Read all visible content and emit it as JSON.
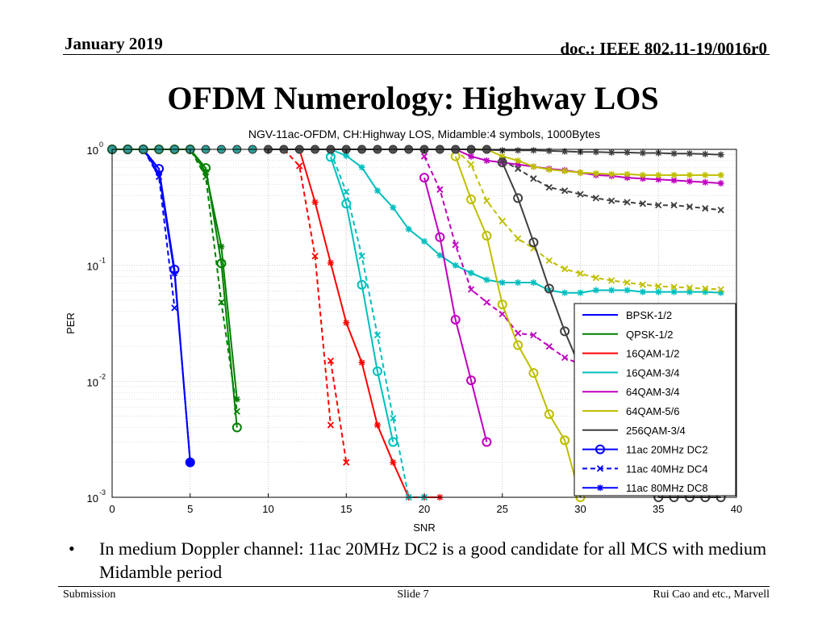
{
  "header": {
    "date": "January 2019",
    "doc": "doc.: IEEE 802.11-19/0016r0"
  },
  "slide": {
    "title": "OFDM Numerology: Highway LOS"
  },
  "bullet": {
    "marker": "•",
    "text": "In medium Doppler channel: 11ac 20MHz DC2 is a good candidate for all MCS with medium Midamble period"
  },
  "footer": {
    "left": "Submission",
    "center": "Slide 7",
    "right": "Rui Cao and etc., Marvell"
  },
  "chart_data": {
    "type": "line",
    "title": "NGV-11ac-OFDM, CH:Highway LOS, Midamble:4 symbols, 1000Bytes",
    "xlabel": "SNR",
    "ylabel": "PER",
    "xlim": [
      0,
      40
    ],
    "ylim": [
      0.001,
      1
    ],
    "yscale": "log",
    "xticks": [
      0,
      5,
      10,
      15,
      20,
      25,
      30,
      35,
      40
    ],
    "yticks": [
      {
        "value": 1,
        "base": "10",
        "exp": "0"
      },
      {
        "value": 0.1,
        "base": "10",
        "exp": "-1"
      },
      {
        "value": 0.01,
        "base": "10",
        "exp": "-2"
      },
      {
        "value": 0.001,
        "base": "10",
        "exp": "-3"
      }
    ],
    "grid": true,
    "legend_position": "bottom-right",
    "mcs": [
      {
        "name": "BPSK-1/2",
        "color": "#0000ff"
      },
      {
        "name": "QPSK-1/2",
        "color": "#008000"
      },
      {
        "name": "16QAM-1/2",
        "color": "#ff0000"
      },
      {
        "name": "16QAM-3/4",
        "color": "#00bfbf"
      },
      {
        "name": "64QAM-3/4",
        "color": "#bf00bf"
      },
      {
        "name": "64QAM-5/6",
        "color": "#bfbf00"
      },
      {
        "name": "256QAM-3/4",
        "color": "#404040"
      }
    ],
    "modes": [
      {
        "name": "11ac 20MHz DC2",
        "line": "solid",
        "marker": "circle"
      },
      {
        "name": "11ac 40MHz DC4",
        "line": "dashed",
        "marker": "x"
      },
      {
        "name": "11ac 80MHz DC8",
        "line": "solid",
        "marker": "star"
      }
    ],
    "series": [
      {
        "name": "BPSK-1/2 / 11ac 20MHz DC2",
        "mcs": 0,
        "mode": 0,
        "x": [
          0,
          1,
          2,
          3,
          4,
          5
        ],
        "y": [
          1,
          1,
          1,
          0.68,
          0.092,
          0.002
        ]
      },
      {
        "name": "BPSK-1/2 / 11ac 40MHz DC4",
        "mcs": 0,
        "mode": 1,
        "x": [
          0,
          1,
          2,
          3,
          4
        ],
        "y": [
          1,
          1,
          1,
          0.58,
          0.043
        ]
      },
      {
        "name": "BPSK-1/2 / 11ac 80MHz DC8",
        "mcs": 0,
        "mode": 2,
        "x": [
          0,
          1,
          2,
          3,
          4,
          5
        ],
        "y": [
          1,
          1,
          1,
          0.62,
          0.085,
          0.002
        ]
      },
      {
        "name": "QPSK-1/2 / 11ac 20MHz DC2",
        "mcs": 1,
        "mode": 0,
        "x": [
          0,
          1,
          2,
          3,
          4,
          5,
          6,
          7,
          8
        ],
        "y": [
          1,
          1,
          1,
          1,
          1,
          1,
          0.69,
          0.104,
          0.004
        ]
      },
      {
        "name": "QPSK-1/2 / 11ac 40MHz DC4",
        "mcs": 1,
        "mode": 1,
        "x": [
          0,
          1,
          2,
          3,
          4,
          5,
          6,
          7,
          8
        ],
        "y": [
          1,
          1,
          1,
          1,
          1,
          1,
          0.58,
          0.048,
          0.0055
        ]
      },
      {
        "name": "QPSK-1/2 / 11ac 80MHz DC8",
        "mcs": 1,
        "mode": 2,
        "x": [
          0,
          1,
          2,
          3,
          4,
          5,
          6,
          7,
          8
        ],
        "y": [
          1,
          1,
          1,
          1,
          1,
          1,
          0.64,
          0.145,
          0.007
        ]
      },
      {
        "name": "16QAM-1/2 / 11ac 40MHz DC4",
        "mcs": 2,
        "mode": 1,
        "x": [
          10,
          11,
          12,
          13,
          14
        ],
        "y": [
          1,
          1,
          0.72,
          0.12,
          0.0042
        ]
      },
      {
        "name": "16QAM-1/2 / 11ac 40MHz DC4 (tail)",
        "mcs": 2,
        "mode": 1,
        "x": [
          14,
          15
        ],
        "y": [
          0.015,
          0.002
        ]
      },
      {
        "name": "16QAM-1/2 / 11ac 80MHz DC8",
        "mcs": 2,
        "mode": 2,
        "x": [
          10,
          11,
          12,
          13,
          14,
          15,
          16,
          17,
          18,
          19,
          20,
          21
        ],
        "y": [
          1,
          1,
          1,
          0.35,
          0.105,
          0.032,
          0.0145,
          0.0042,
          0.002,
          0.001,
          0.001,
          0.001
        ]
      },
      {
        "name": "16QAM-3/4 / 11ac 20MHz DC2",
        "mcs": 3,
        "mode": 0,
        "x": [
          14,
          15,
          16,
          17,
          18
        ],
        "y": [
          0.86,
          0.34,
          0.068,
          0.0122,
          0.003
        ]
      },
      {
        "name": "16QAM-3/4 / 11ac 40MHz DC4",
        "mcs": 3,
        "mode": 1,
        "x": [
          14,
          15,
          16,
          17,
          18,
          19,
          20
        ],
        "y": [
          0.95,
          0.43,
          0.12,
          0.025,
          0.0048,
          0.001,
          0.001
        ]
      },
      {
        "name": "16QAM-3/4 / 11ac 80MHz DC8",
        "mcs": 3,
        "mode": 2,
        "x": [
          14,
          15,
          16,
          17,
          18,
          19,
          20,
          21,
          22,
          23,
          24,
          25,
          26,
          27,
          28,
          29,
          30,
          31,
          32,
          33,
          34,
          35,
          36,
          37,
          38,
          39
        ],
        "y": [
          1,
          0.88,
          0.7,
          0.44,
          0.315,
          0.205,
          0.161,
          0.122,
          0.1,
          0.086,
          0.075,
          0.071,
          0.071,
          0.071,
          0.061,
          0.058,
          0.058,
          0.061,
          0.061,
          0.061,
          0.059,
          0.059,
          0.059,
          0.059,
          0.059,
          0.058
        ]
      },
      {
        "name": "64QAM-3/4 / 11ac 20MHz DC2",
        "mcs": 4,
        "mode": 0,
        "x": [
          20,
          21,
          22,
          23,
          24
        ],
        "y": [
          0.57,
          0.175,
          0.034,
          0.0102,
          0.003
        ]
      },
      {
        "name": "64QAM-3/4 / 11ac 40MHz DC4",
        "mcs": 4,
        "mode": 1,
        "x": [
          20,
          21,
          22,
          23,
          24,
          25,
          26,
          27,
          28,
          29,
          30
        ],
        "y": [
          0.87,
          0.45,
          0.15,
          0.062,
          0.048,
          0.038,
          0.026,
          0.025,
          0.02,
          0.016,
          0.014
        ]
      },
      {
        "name": "64QAM-3/4 / 11ac 80MHz DC8",
        "mcs": 4,
        "mode": 2,
        "x": [
          20,
          21,
          22,
          23,
          24,
          25,
          26,
          27,
          28,
          29,
          30,
          31,
          32,
          33,
          34,
          35,
          36,
          37,
          38,
          39
        ],
        "y": [
          1,
          1,
          1,
          0.87,
          0.8,
          0.77,
          0.74,
          0.71,
          0.68,
          0.66,
          0.63,
          0.6,
          0.59,
          0.57,
          0.56,
          0.55,
          0.54,
          0.53,
          0.52,
          0.51
        ]
      },
      {
        "name": "64QAM-5/6 / 11ac 20MHz DC2",
        "mcs": 5,
        "mode": 0,
        "x": [
          22,
          23,
          24,
          25,
          26,
          27,
          28,
          29
        ],
        "y": [
          0.87,
          0.37,
          0.18,
          0.046,
          0.0205,
          0.0118,
          0.0052,
          0.0031
        ]
      },
      {
        "name": "64QAM-5/6 / 11ac 20MHz DC2 (tail)",
        "mcs": 5,
        "mode": 0,
        "x": [
          29,
          30
        ],
        "y": [
          0.0031,
          0.001
        ]
      },
      {
        "name": "64QAM-5/6 / 11ac 40MHz DC4",
        "mcs": 5,
        "mode": 1,
        "x": [
          22,
          23,
          24,
          25,
          26,
          27,
          28,
          29,
          30,
          31,
          32,
          33,
          34,
          35,
          36,
          37,
          38,
          39
        ],
        "y": [
          1,
          0.74,
          0.36,
          0.24,
          0.17,
          0.14,
          0.11,
          0.093,
          0.085,
          0.078,
          0.074,
          0.071,
          0.068,
          0.066,
          0.065,
          0.064,
          0.063,
          0.062
        ]
      },
      {
        "name": "64QAM-5/6 / 11ac 80MHz DC8",
        "mcs": 5,
        "mode": 2,
        "x": [
          22,
          23,
          24,
          25,
          26,
          27,
          28,
          29,
          30,
          31,
          32,
          33,
          34,
          35,
          36,
          37,
          38,
          39
        ],
        "y": [
          1,
          1,
          1,
          0.87,
          0.8,
          0.71,
          0.67,
          0.65,
          0.63,
          0.62,
          0.61,
          0.61,
          0.6,
          0.6,
          0.6,
          0.6,
          0.6,
          0.6
        ]
      },
      {
        "name": "256QAM-3/4 / 11ac 20MHz DC2",
        "mcs": 6,
        "mode": 0,
        "x": [
          25,
          26,
          27,
          28,
          29,
          30
        ],
        "y": [
          0.77,
          0.38,
          0.158,
          0.063,
          0.027,
          0.013
        ]
      },
      {
        "name": "256QAM-3/4 / 11ac 20MHz DC2 (floor)",
        "mcs": 6,
        "mode": 0,
        "x": [
          35,
          36,
          37,
          38,
          39
        ],
        "y": [
          0.001,
          0.001,
          0.001,
          0.001,
          0.001
        ]
      },
      {
        "name": "256QAM-3/4 / 11ac 40MHz DC4",
        "mcs": 6,
        "mode": 1,
        "x": [
          25,
          26,
          27,
          28,
          29,
          30,
          31,
          32,
          33,
          34,
          35,
          36,
          37,
          38,
          39
        ],
        "y": [
          0.8,
          0.68,
          0.56,
          0.47,
          0.44,
          0.41,
          0.38,
          0.36,
          0.35,
          0.34,
          0.33,
          0.33,
          0.32,
          0.31,
          0.3
        ]
      },
      {
        "name": "256QAM-3/4 / 11ac 80MHz DC8",
        "mcs": 6,
        "mode": 2,
        "x": [
          10,
          11,
          12,
          13,
          14,
          15,
          16,
          17,
          18,
          19,
          20,
          21,
          22,
          23,
          24,
          25,
          26,
          27,
          28,
          29,
          30,
          31,
          32,
          33,
          34,
          35,
          36,
          37,
          38,
          39
        ],
        "y": [
          1,
          1,
          1,
          1,
          1,
          1,
          1,
          1,
          1,
          1,
          1,
          1,
          1,
          1,
          0.99,
          0.98,
          0.98,
          0.98,
          0.97,
          0.96,
          0.95,
          0.95,
          0.94,
          0.94,
          0.93,
          0.93,
          0.92,
          0.92,
          0.91,
          0.9
        ]
      }
    ]
  }
}
